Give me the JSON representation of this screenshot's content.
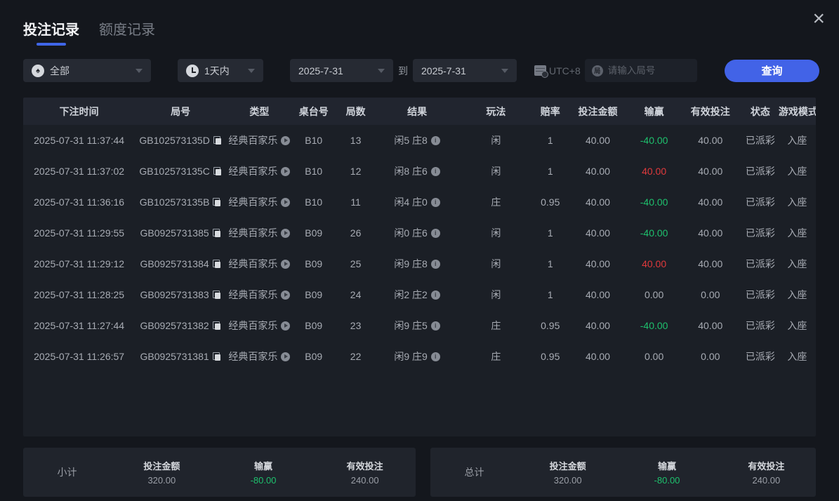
{
  "window": {
    "close_label": "×"
  },
  "tabs": [
    {
      "label": "投注记录"
    },
    {
      "label": "额度记录"
    }
  ],
  "filters": {
    "game_type": "全部",
    "game_type_icon": "♠",
    "time_range": "1天内",
    "date_from": "2025-7-31",
    "to_label": "到",
    "date_to": "2025-7-31",
    "timezone": "UTC+8",
    "search_icon_glyph": "局",
    "search_placeholder": "请输入局号",
    "query_label": "查询"
  },
  "table": {
    "headers": [
      "下注时间",
      "局号",
      "类型",
      "桌台号",
      "局数",
      "结果",
      "玩法",
      "赔率",
      "投注金额",
      "输赢",
      "有效投注",
      "状态",
      "游戏模式"
    ],
    "rows": [
      {
        "time": "2025-07-31 11:37:44",
        "id": "GB102573135D",
        "type": "经典百家乐",
        "table": "B10",
        "rounds": "13",
        "result": "闲5 庄8",
        "play": "闲",
        "odds": "1",
        "bet": "40.00",
        "win": "-40.00",
        "win_color": "green",
        "valid": "40.00",
        "status": "已派彩",
        "mode": "入座"
      },
      {
        "time": "2025-07-31 11:37:02",
        "id": "GB102573135C",
        "type": "经典百家乐",
        "table": "B10",
        "rounds": "12",
        "result": "闲8 庄6",
        "play": "闲",
        "odds": "1",
        "bet": "40.00",
        "win": "40.00",
        "win_color": "red",
        "valid": "40.00",
        "status": "已派彩",
        "mode": "入座"
      },
      {
        "time": "2025-07-31 11:36:16",
        "id": "GB102573135B",
        "type": "经典百家乐",
        "table": "B10",
        "rounds": "11",
        "result": "闲4 庄0",
        "play": "庄",
        "odds": "0.95",
        "bet": "40.00",
        "win": "-40.00",
        "win_color": "green",
        "valid": "40.00",
        "status": "已派彩",
        "mode": "入座"
      },
      {
        "time": "2025-07-31 11:29:55",
        "id": "GB0925731385",
        "type": "经典百家乐",
        "table": "B09",
        "rounds": "26",
        "result": "闲0 庄6",
        "play": "闲",
        "odds": "1",
        "bet": "40.00",
        "win": "-40.00",
        "win_color": "green",
        "valid": "40.00",
        "status": "已派彩",
        "mode": "入座"
      },
      {
        "time": "2025-07-31 11:29:12",
        "id": "GB0925731384",
        "type": "经典百家乐",
        "table": "B09",
        "rounds": "25",
        "result": "闲9 庄8",
        "play": "闲",
        "odds": "1",
        "bet": "40.00",
        "win": "40.00",
        "win_color": "red",
        "valid": "40.00",
        "status": "已派彩",
        "mode": "入座"
      },
      {
        "time": "2025-07-31 11:28:25",
        "id": "GB0925731383",
        "type": "经典百家乐",
        "table": "B09",
        "rounds": "24",
        "result": "闲2 庄2",
        "play": "闲",
        "odds": "1",
        "bet": "40.00",
        "win": "0.00",
        "win_color": "neutral",
        "valid": "0.00",
        "status": "已派彩",
        "mode": "入座"
      },
      {
        "time": "2025-07-31 11:27:44",
        "id": "GB0925731382",
        "type": "经典百家乐",
        "table": "B09",
        "rounds": "23",
        "result": "闲9 庄5",
        "play": "庄",
        "odds": "0.95",
        "bet": "40.00",
        "win": "-40.00",
        "win_color": "green",
        "valid": "40.00",
        "status": "已派彩",
        "mode": "入座"
      },
      {
        "time": "2025-07-31 11:26:57",
        "id": "GB0925731381",
        "type": "经典百家乐",
        "table": "B09",
        "rounds": "22",
        "result": "闲9 庄9",
        "play": "庄",
        "odds": "0.95",
        "bet": "40.00",
        "win": "0.00",
        "win_color": "neutral",
        "valid": "0.00",
        "status": "已派彩",
        "mode": "入座"
      }
    ]
  },
  "summary": {
    "subtotal": {
      "label": "小计",
      "bet_label": "投注金额",
      "bet": "320.00",
      "win_label": "输赢",
      "win": "-80.00",
      "valid_label": "有效投注",
      "valid": "240.00"
    },
    "total": {
      "label": "总计",
      "bet_label": "投注金额",
      "bet": "320.00",
      "win_label": "输赢",
      "win": "-80.00",
      "valid_label": "有效投注",
      "valid": "240.00"
    }
  },
  "colors": {
    "accent": "#4263e7",
    "green": "#1ec06d",
    "red": "#e0393c"
  }
}
